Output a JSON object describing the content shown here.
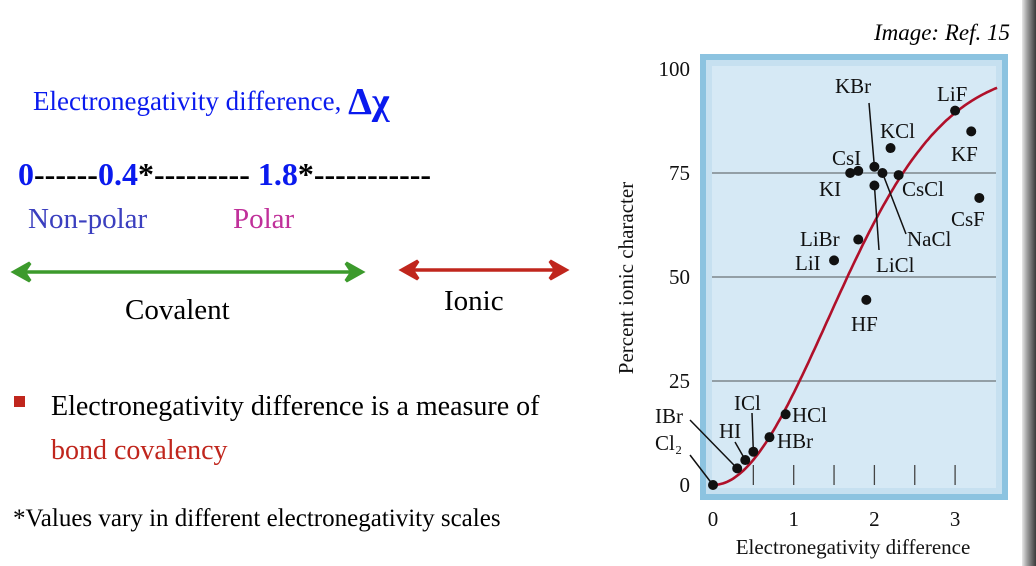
{
  "heading": {
    "text": "Electronegativity  difference, ",
    "symbol": "Δχ"
  },
  "scale": {
    "v0": "0",
    "d1": "------",
    "v1": "0.4",
    "d2": "*--------- ",
    "v2": "1.8",
    "d3": "*-----------"
  },
  "labels": {
    "nonpolar": "Non-polar",
    "polar": "Polar",
    "covalent": "Covalent",
    "ionic": "Ionic"
  },
  "colors": {
    "blue_text": "#0a1aee",
    "nonpolar": "#3b3fbf",
    "polar": "#c0309a",
    "covalent_arrow": "#3c9a2c",
    "ionic_arrow": "#c0261d",
    "accent_red": "#c0261d",
    "curve": "#b0102a",
    "plot_bg": "#d6e9f5",
    "plot_border": "#8cc3e0"
  },
  "bullet": {
    "text_before": "Electronegativity difference is a measure of ",
    "highlight": "bond covalency"
  },
  "footnote": "*Values vary in different electronegativity scales",
  "credit": "Image: Ref. 15",
  "chart_data": {
    "type": "scatter",
    "xlabel": "Electronegativity difference",
    "ylabel": "Percent ionic character",
    "xlim": [
      0,
      3.6
    ],
    "ylim": [
      0,
      100
    ],
    "xticks": [
      "0",
      "1",
      "2",
      "3"
    ],
    "yticks": [
      "0",
      "25",
      "50",
      "75",
      "100"
    ],
    "grid": "horizontal at 25, 50, 75",
    "curve": "sigmoid 100*(1-exp(-x^2/4))",
    "points": [
      {
        "label": "Cl₂",
        "x": 0.0,
        "y": 0
      },
      {
        "label": "IBr",
        "x": 0.3,
        "y": 4
      },
      {
        "label": "HI",
        "x": 0.4,
        "y": 6
      },
      {
        "label": "ICl",
        "x": 0.5,
        "y": 8
      },
      {
        "label": "HBr",
        "x": 0.7,
        "y": 11.5
      },
      {
        "label": "HCl",
        "x": 0.9,
        "y": 17
      },
      {
        "label": "LiI",
        "x": 1.5,
        "y": 54
      },
      {
        "label": "LiBr",
        "x": 1.8,
        "y": 59
      },
      {
        "label": "HF",
        "x": 1.9,
        "y": 44.5
      },
      {
        "label": "KI",
        "x": 1.7,
        "y": 75
      },
      {
        "label": "CsI",
        "x": 1.8,
        "y": 75.5
      },
      {
        "label": "KBr",
        "x": 2.0,
        "y": 76.5
      },
      {
        "label": "LiCl",
        "x": 2.0,
        "y": 72
      },
      {
        "label": "NaCl",
        "x": 2.1,
        "y": 75
      },
      {
        "label": "CsCl",
        "x": 2.3,
        "y": 74.5
      },
      {
        "label": "KCl",
        "x": 2.2,
        "y": 81
      },
      {
        "label": "LiF",
        "x": 3.0,
        "y": 90
      },
      {
        "label": "KF",
        "x": 3.2,
        "y": 85
      },
      {
        "label": "CsF",
        "x": 3.3,
        "y": 69
      }
    ]
  }
}
